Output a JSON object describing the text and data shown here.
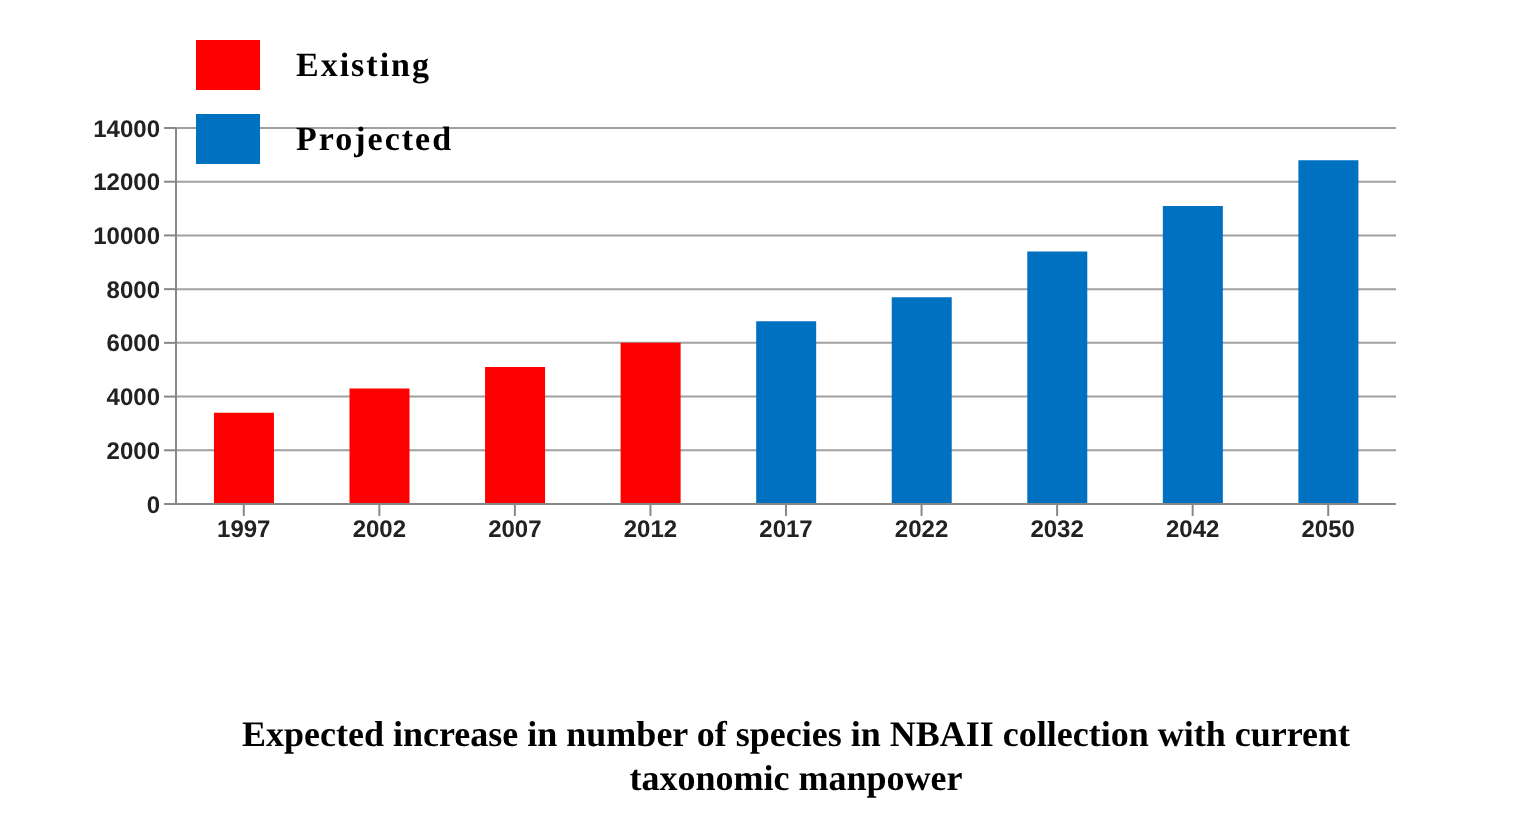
{
  "chart_data": {
    "type": "bar",
    "title": "Expected increase in number of species in NBAII collection with current taxonomic manpower",
    "categories": [
      "1997",
      "2002",
      "2007",
      "2012",
      "2017",
      "2022",
      "2032",
      "2042",
      "2050"
    ],
    "series": [
      {
        "name": "Existing",
        "color": "#ff0000",
        "values": [
          3400,
          4300,
          5100,
          6000,
          null,
          null,
          null,
          null,
          null
        ]
      },
      {
        "name": "Projected",
        "color": "#0070c0",
        "values": [
          null,
          null,
          null,
          null,
          6800,
          7700,
          9400,
          11100,
          12800
        ]
      }
    ],
    "stacked": true,
    "ylim": [
      0,
      14000
    ],
    "yticks": [
      0,
      2000,
      4000,
      6000,
      8000,
      10000,
      12000,
      14000
    ],
    "grid": "y",
    "legend": "top left"
  }
}
